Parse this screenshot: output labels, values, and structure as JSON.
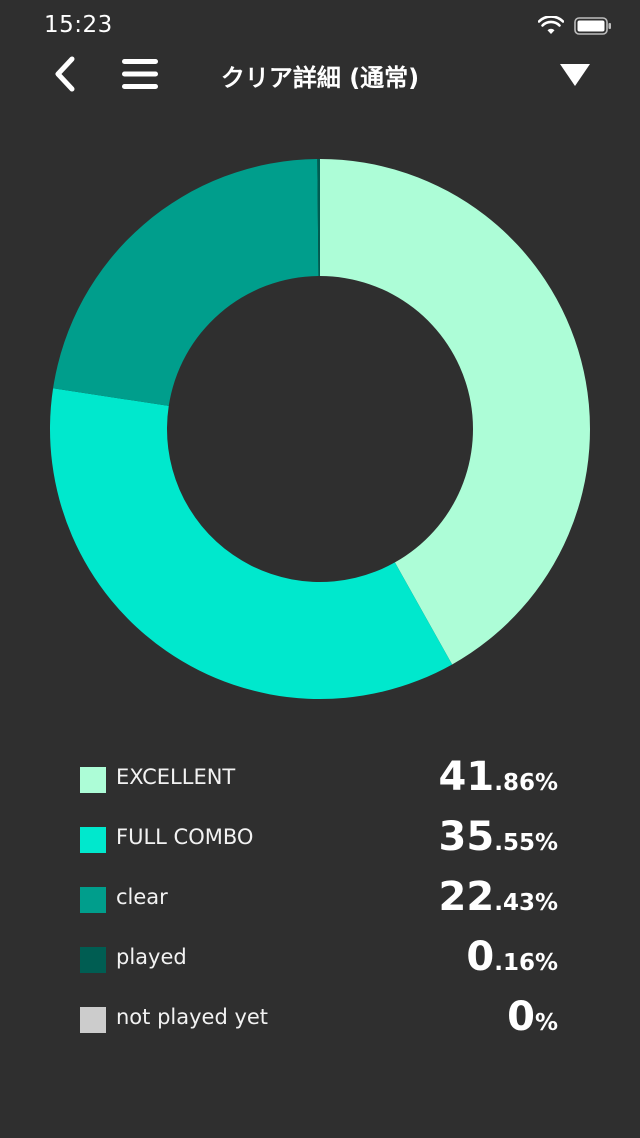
{
  "status_bar": {
    "time": "15:23"
  },
  "header": {
    "title": "クリア詳細 (通常)"
  },
  "icons": {
    "back": "chevron-left-icon",
    "menu": "hamburger-icon",
    "dropdown": "triangle-down-icon",
    "wifi": "wifi-icon",
    "battery": "battery-icon"
  },
  "chart_data": {
    "type": "pie",
    "donut": true,
    "categories": [
      "EXCELLENT",
      "FULL COMBO",
      "clear",
      "played",
      "not played yet"
    ],
    "values": [
      41.86,
      35.55,
      22.43,
      0.16,
      0
    ],
    "colors": [
      "#adfdd7",
      "#00e8cd",
      "#009e8c",
      "#005d52",
      "#cccccc"
    ],
    "start_angle": "12 o'clock, clockwise",
    "legend_position": "bottom"
  },
  "legend": [
    {
      "label": "EXCELLENT",
      "int": "41",
      "frac": ".86%"
    },
    {
      "label": "FULL COMBO",
      "int": "35",
      "frac": ".55%"
    },
    {
      "label": "clear",
      "int": "22",
      "frac": ".43%"
    },
    {
      "label": "played",
      "int": "0",
      "frac": ".16%"
    },
    {
      "label": "not played yet",
      "int": "0",
      "frac": "%"
    }
  ]
}
